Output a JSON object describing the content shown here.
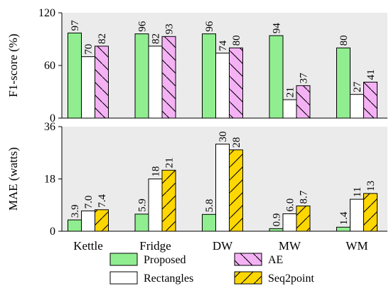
{
  "chart_data": [
    {
      "type": "bar",
      "ylabel": "F1-score (%)",
      "ylim": [
        0,
        120
      ],
      "yticks": [
        0,
        60,
        120
      ],
      "grid": false,
      "background": "#ebebeb",
      "categories": [
        "Kettle",
        "Fridge",
        "DW",
        "MW",
        "WM"
      ],
      "series": [
        {
          "name": "Proposed",
          "values": [
            97,
            96,
            96,
            94,
            80
          ],
          "labels": [
            "97",
            "96",
            "96",
            "94",
            "80"
          ]
        },
        {
          "name": "Rectangles",
          "values": [
            70,
            82,
            74,
            21,
            27
          ],
          "labels": [
            "70",
            "82",
            "74",
            "21",
            "27"
          ]
        },
        {
          "name": "AE",
          "values": [
            82,
            93,
            80,
            37,
            41
          ],
          "labels": [
            "82",
            "93",
            "80",
            "37",
            "41"
          ]
        }
      ]
    },
    {
      "type": "bar",
      "ylabel": "MAE (watts)",
      "ylim": [
        0,
        36
      ],
      "yticks": [
        0,
        18,
        36
      ],
      "grid": false,
      "background": "#ebebeb",
      "categories": [
        "Kettle",
        "Fridge",
        "DW",
        "MW",
        "WM"
      ],
      "series": [
        {
          "name": "Proposed",
          "values": [
            3.9,
            5.9,
            5.8,
            0.9,
            1.4
          ],
          "labels": [
            "3.9",
            "5.9",
            "5.8",
            "0.9",
            "1.4"
          ]
        },
        {
          "name": "Rectangles",
          "values": [
            7.0,
            18,
            30,
            6.0,
            11
          ],
          "labels": [
            "7.0",
            "18",
            "30",
            "6.0",
            "11"
          ]
        },
        {
          "name": "Seq2point",
          "values": [
            7.4,
            21,
            28,
            8.7,
            13
          ],
          "labels": [
            "7.4",
            "21",
            "28",
            "8.7",
            "13"
          ]
        }
      ]
    }
  ],
  "legend": {
    "placement": "bottom",
    "items": [
      {
        "name": "Proposed",
        "color": "#90ee90",
        "hatch": "none"
      },
      {
        "name": "AE",
        "color": "#f4b2f4",
        "hatch": "backslash"
      },
      {
        "name": "Rectangles",
        "color": "#ffffff",
        "hatch": "none"
      },
      {
        "name": "Seq2point",
        "color": "#ffd700",
        "hatch": "slash"
      }
    ]
  },
  "series_styles": {
    "Proposed": {
      "color": "#90ee90",
      "hatch": "none"
    },
    "Rectangles": {
      "color": "#ffffff",
      "hatch": "none"
    },
    "AE": {
      "color": "#f4b2f4",
      "hatch": "backslash"
    },
    "Seq2point": {
      "color": "#ffd700",
      "hatch": "slash"
    }
  }
}
